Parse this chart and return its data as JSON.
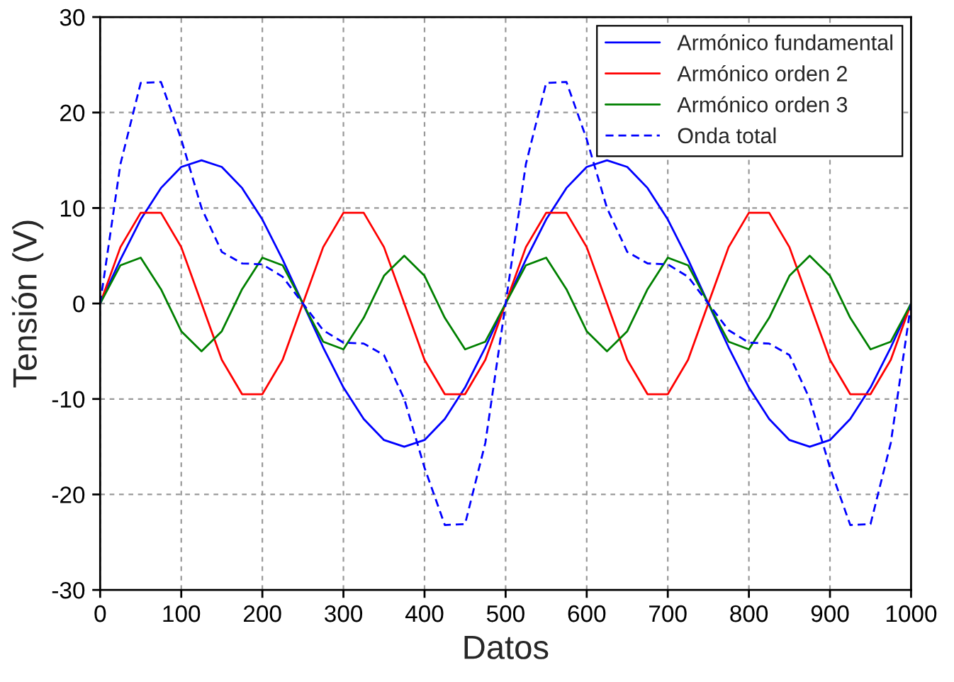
{
  "chart_data": {
    "type": "line",
    "xlabel": "Datos",
    "ylabel": "Tensión (V)",
    "x": [
      0,
      25,
      50,
      75,
      100,
      125,
      150,
      175,
      200,
      225,
      250,
      275,
      300,
      325,
      350,
      375,
      400,
      425,
      450,
      475,
      500,
      525,
      550,
      575,
      600,
      625,
      650,
      675,
      700,
      725,
      750,
      775,
      800,
      825,
      850,
      875,
      900,
      925,
      950,
      975,
      1000
    ],
    "series": [
      {
        "name": "Armónico fundamental",
        "color": "#0000ff",
        "line_style": "solid",
        "values": [
          0,
          4.6,
          8.8,
          12.1,
          14.3,
          15,
          14.3,
          12.1,
          8.8,
          4.6,
          0,
          -4.6,
          -8.8,
          -12.1,
          -14.3,
          -15,
          -14.3,
          -12.1,
          -8.8,
          -4.6,
          0,
          4.6,
          8.8,
          12.1,
          14.3,
          15,
          14.3,
          12.1,
          8.8,
          4.6,
          0,
          -4.6,
          -8.8,
          -12.1,
          -14.3,
          -15,
          -14.3,
          -12.1,
          -8.8,
          -4.6,
          0
        ]
      },
      {
        "name": "Armónico orden 2",
        "color": "#ff0000",
        "line_style": "solid",
        "values": [
          0,
          5.9,
          9.5,
          9.5,
          5.9,
          0,
          -5.9,
          -9.5,
          -9.5,
          -5.9,
          0,
          5.9,
          9.5,
          9.5,
          5.9,
          0,
          -5.9,
          -9.5,
          -9.5,
          -5.9,
          0,
          5.9,
          9.5,
          9.5,
          5.9,
          0,
          -5.9,
          -9.5,
          -9.5,
          -5.9,
          0,
          5.9,
          9.5,
          9.5,
          5.9,
          0,
          -5.9,
          -9.5,
          -9.5,
          -5.9,
          0
        ]
      },
      {
        "name": "Armónico orden 3",
        "color": "#008000",
        "line_style": "solid",
        "values": [
          0,
          4,
          4.8,
          1.5,
          -2.9,
          -5,
          -2.9,
          1.5,
          4.8,
          4,
          0,
          -4,
          -4.8,
          -1.5,
          2.9,
          5,
          2.9,
          -1.5,
          -4.8,
          -4,
          0,
          4,
          4.8,
          1.5,
          -2.9,
          -5,
          -2.9,
          1.5,
          4.8,
          4,
          0,
          -4,
          -4.8,
          -1.5,
          2.9,
          5,
          2.9,
          -1.5,
          -4.8,
          -4,
          0
        ]
      },
      {
        "name": "Onda total",
        "color": "#0000ff",
        "line_style": "dashed",
        "values": [
          0,
          14.6,
          23.1,
          23.2,
          17.2,
          10,
          5.4,
          4.2,
          4.1,
          2.8,
          0,
          -2.8,
          -4.1,
          -4.2,
          -5.4,
          -10,
          -17.2,
          -23.2,
          -23.1,
          -14.6,
          0,
          14.6,
          23.1,
          23.2,
          17.2,
          10,
          5.4,
          4.2,
          4.1,
          2.8,
          0,
          -2.8,
          -4.1,
          -4.2,
          -5.4,
          -10,
          -17.2,
          -23.2,
          -23.1,
          -14.6,
          0
        ]
      }
    ],
    "xlim": [
      0,
      1000
    ],
    "ylim": [
      -30,
      30
    ],
    "xticks": [
      0,
      100,
      200,
      300,
      400,
      500,
      600,
      700,
      800,
      900,
      1000
    ],
    "yticks": [
      -30,
      -20,
      -10,
      0,
      10,
      20,
      30
    ],
    "grid": true,
    "legend": "top right",
    "marker": "none"
  }
}
